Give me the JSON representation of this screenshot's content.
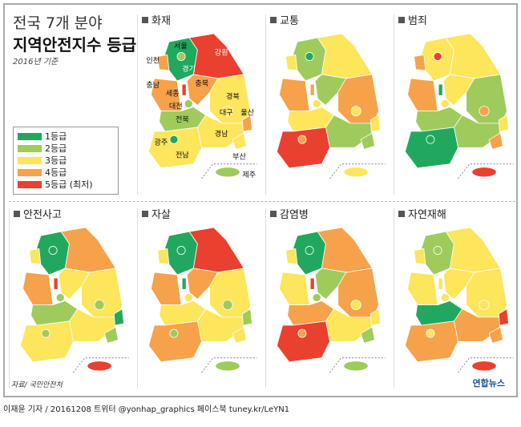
{
  "header": {
    "title_line1": "전국 7개 분야",
    "title_line2": "지역안전지수 등급",
    "subtitle": "2016년 기준"
  },
  "grade_colors": {
    "1": "#21a85e",
    "2": "#9fcb5c",
    "3": "#fde55c",
    "4": "#f6a24a",
    "5": "#e9402f"
  },
  "legend": [
    {
      "grade": 1,
      "label": "1등급"
    },
    {
      "grade": 2,
      "label": "2등급"
    },
    {
      "grade": 3,
      "label": "3등급"
    },
    {
      "grade": 4,
      "label": "4등급"
    },
    {
      "grade": 5,
      "label": "5등급 (최저)"
    }
  ],
  "region_labels": {
    "seoul": "서울",
    "incheon": "인천",
    "gyeonggi": "경기",
    "gangwon": "강원",
    "chungnam": "충남",
    "sejong": "세종",
    "daejeon": "대전",
    "chungbuk": "충북",
    "gyeongbuk": "경북",
    "daegu": "대구",
    "ulsan": "울산",
    "jeonbuk": "전북",
    "gwangju": "광주",
    "jeonnam": "전남",
    "gyeongnam": "경남",
    "busan": "부산",
    "jeju": "제주"
  },
  "maps": [
    {
      "title": "화재",
      "grades": {
        "seoul": 2,
        "incheon": 4,
        "gyeonggi": 1,
        "gangwon": 5,
        "chungnam": 4,
        "sejong": 5,
        "daejeon": 2,
        "chungbuk": 4,
        "gyeongbuk": 3,
        "daegu": 3,
        "ulsan": 4,
        "jeonbuk": 2,
        "gwangju": 1,
        "jeonnam": 3,
        "gyeongnam": 3,
        "busan": 3,
        "jeju": 2
      }
    },
    {
      "title": "교통",
      "grades": {
        "seoul": 1,
        "incheon": 3,
        "gyeonggi": 2,
        "gangwon": 3,
        "chungnam": 4,
        "sejong": 4,
        "daejeon": 3,
        "chungbuk": 2,
        "gyeongbuk": 4,
        "daegu": 3,
        "ulsan": 3,
        "jeonbuk": 3,
        "gwangju": 4,
        "jeonnam": 5,
        "gyeongnam": 2,
        "busan": 2,
        "jeju": 3
      }
    },
    {
      "title": "범죄",
      "grades": {
        "seoul": 5,
        "incheon": 4,
        "gyeonggi": 3,
        "gangwon": 3,
        "chungnam": 4,
        "sejong": 1,
        "daejeon": 3,
        "chungbuk": 3,
        "gyeongbuk": 2,
        "daegu": 4,
        "ulsan": 3,
        "jeonbuk": 2,
        "gwangju": 1,
        "jeonnam": 1,
        "gyeongnam": 2,
        "busan": 4,
        "jeju": 5
      }
    },
    {
      "title": "안전사고",
      "grades": {
        "seoul": 1,
        "incheon": 3,
        "gyeonggi": 1,
        "gangwon": 4,
        "chungnam": 4,
        "sejong": 5,
        "daejeon": 2,
        "chungbuk": 3,
        "gyeongbuk": 3,
        "daegu": 2,
        "ulsan": 1,
        "jeonbuk": 2,
        "gwangju": 2,
        "jeonnam": 3,
        "gyeongnam": 3,
        "busan": 2,
        "jeju": 5
      }
    },
    {
      "title": "자살",
      "grades": {
        "seoul": 1,
        "incheon": 3,
        "gyeonggi": 1,
        "gangwon": 5,
        "chungnam": 4,
        "sejong": 1,
        "daejeon": 3,
        "chungbuk": 4,
        "gyeongbuk": 3,
        "daegu": 2,
        "ulsan": 2,
        "jeonbuk": 3,
        "gwangju": 2,
        "jeonnam": 4,
        "gyeongnam": 3,
        "busan": 3,
        "jeju": 2
      }
    },
    {
      "title": "감염병",
      "grades": {
        "seoul": 1,
        "incheon": 3,
        "gyeonggi": 1,
        "gangwon": 4,
        "chungnam": 3,
        "sejong": 5,
        "daejeon": 2,
        "chungbuk": 2,
        "gyeongbuk": 4,
        "daegu": 3,
        "ulsan": 3,
        "jeonbuk": 4,
        "gwangju": 4,
        "jeonnam": 5,
        "gyeongnam": 3,
        "busan": 2,
        "jeju": 2
      }
    },
    {
      "title": "자연재해",
      "grades": {
        "seoul": 2,
        "incheon": 3,
        "gyeonggi": 2,
        "gangwon": 3,
        "chungnam": 3,
        "sejong": 3,
        "daejeon": 3,
        "chungbuk": 3,
        "gyeongbuk": 3,
        "daegu": 3,
        "ulsan": 5,
        "jeonbuk": 1,
        "gwangju": 3,
        "jeonnam": 4,
        "gyeongnam": 4,
        "busan": 4,
        "jeju": 5
      }
    }
  ],
  "footer": {
    "source": "자료/ 국민안전처",
    "logo": "연합뉴스",
    "credit": "이재윤 기자 / 20161208   트위터 @yonhap_graphics  페이스북 tuney.kr/LeYN1"
  }
}
